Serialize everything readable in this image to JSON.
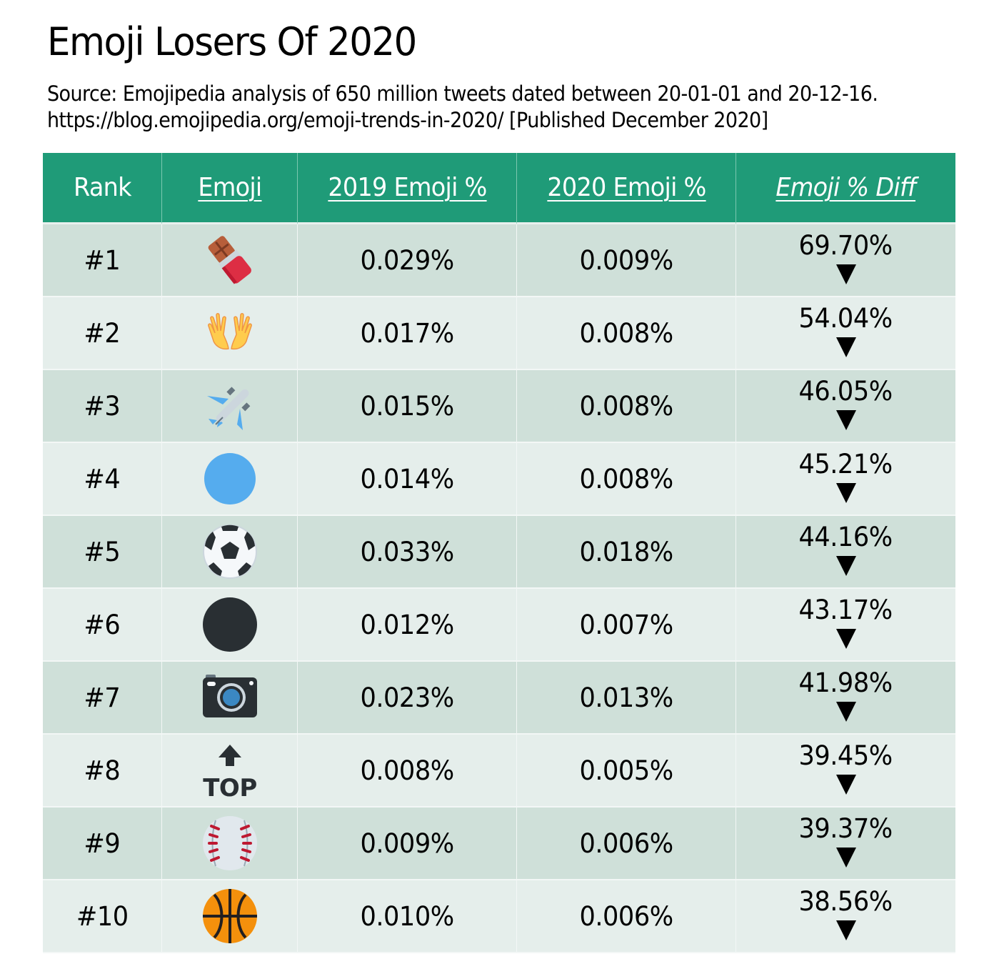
{
  "header": {
    "title": "Emoji Losers Of 2020",
    "source_line1": "Source: Emojipedia analysis of 650 million tweets dated between 20-01-01 and 20-12-16.",
    "source_line2": "https://blog.emojipedia.org/emoji-trends-in-2020/ [Published December 2020]"
  },
  "table": {
    "columns": [
      "Rank",
      "Emoji",
      "2019 Emoji %",
      "2020 Emoji %",
      "Emoji % Diff"
    ],
    "header_color": "#1f9b78",
    "row_colors": [
      "#cfe0d9",
      "#e5eeeb"
    ],
    "rows": [
      {
        "rank": "#1",
        "emoji": "chocolate-bar-icon",
        "y2019": "0.029%",
        "y2020": "0.009%",
        "diff": "69.70%",
        "direction": "down"
      },
      {
        "rank": "#2",
        "emoji": "jazz-hands-icon",
        "y2019": "0.017%",
        "y2020": "0.008%",
        "diff": "54.04%",
        "direction": "down"
      },
      {
        "rank": "#3",
        "emoji": "airplane-icon",
        "y2019": "0.015%",
        "y2020": "0.008%",
        "diff": "46.05%",
        "direction": "down"
      },
      {
        "rank": "#4",
        "emoji": "blue-circle-icon",
        "y2019": "0.014%",
        "y2020": "0.008%",
        "diff": "45.21%",
        "direction": "down"
      },
      {
        "rank": "#5",
        "emoji": "soccer-ball-icon",
        "y2019": "0.033%",
        "y2020": "0.018%",
        "diff": "44.16%",
        "direction": "down"
      },
      {
        "rank": "#6",
        "emoji": "black-circle-icon",
        "y2019": "0.012%",
        "y2020": "0.007%",
        "diff": "43.17%",
        "direction": "down"
      },
      {
        "rank": "#7",
        "emoji": "camera-icon",
        "y2019": "0.023%",
        "y2020": "0.013%",
        "diff": "41.98%",
        "direction": "down"
      },
      {
        "rank": "#8",
        "emoji": "top-arrow-icon",
        "y2019": "0.008%",
        "y2020": "0.005%",
        "diff": "39.45%",
        "direction": "down"
      },
      {
        "rank": "#9",
        "emoji": "baseball-icon",
        "y2019": "0.009%",
        "y2020": "0.006%",
        "diff": "39.37%",
        "direction": "down"
      },
      {
        "rank": "#10",
        "emoji": "basketball-icon",
        "y2019": "0.010%",
        "y2020": "0.006%",
        "diff": "38.56%",
        "direction": "down"
      }
    ]
  },
  "chart_data": {
    "type": "table",
    "title": "Emoji Losers Of 2020",
    "subtitle": "Source: Emojipedia analysis of 650 million tweets dated between 20-01-01 and 20-12-16. https://blog.emojipedia.org/emoji-trends-in-2020/ [Published December 2020]",
    "columns": [
      "Rank",
      "Emoji",
      "2019 Emoji %",
      "2020 Emoji %",
      "Emoji % Diff"
    ],
    "categories": [
      "chocolate bar",
      "jazz hands",
      "airplane",
      "blue circle",
      "soccer ball",
      "black circle",
      "camera",
      "TOP arrow",
      "baseball",
      "basketball"
    ],
    "series": [
      {
        "name": "2019 Emoji %",
        "values": [
          0.029,
          0.017,
          0.015,
          0.014,
          0.033,
          0.012,
          0.023,
          0.008,
          0.009,
          0.01
        ]
      },
      {
        "name": "2020 Emoji %",
        "values": [
          0.009,
          0.008,
          0.008,
          0.008,
          0.018,
          0.007,
          0.013,
          0.005,
          0.006,
          0.006
        ]
      },
      {
        "name": "Emoji % Diff (decrease)",
        "values": [
          69.7,
          54.04,
          46.05,
          45.21,
          44.16,
          43.17,
          41.98,
          39.45,
          39.37,
          38.56
        ]
      }
    ]
  }
}
